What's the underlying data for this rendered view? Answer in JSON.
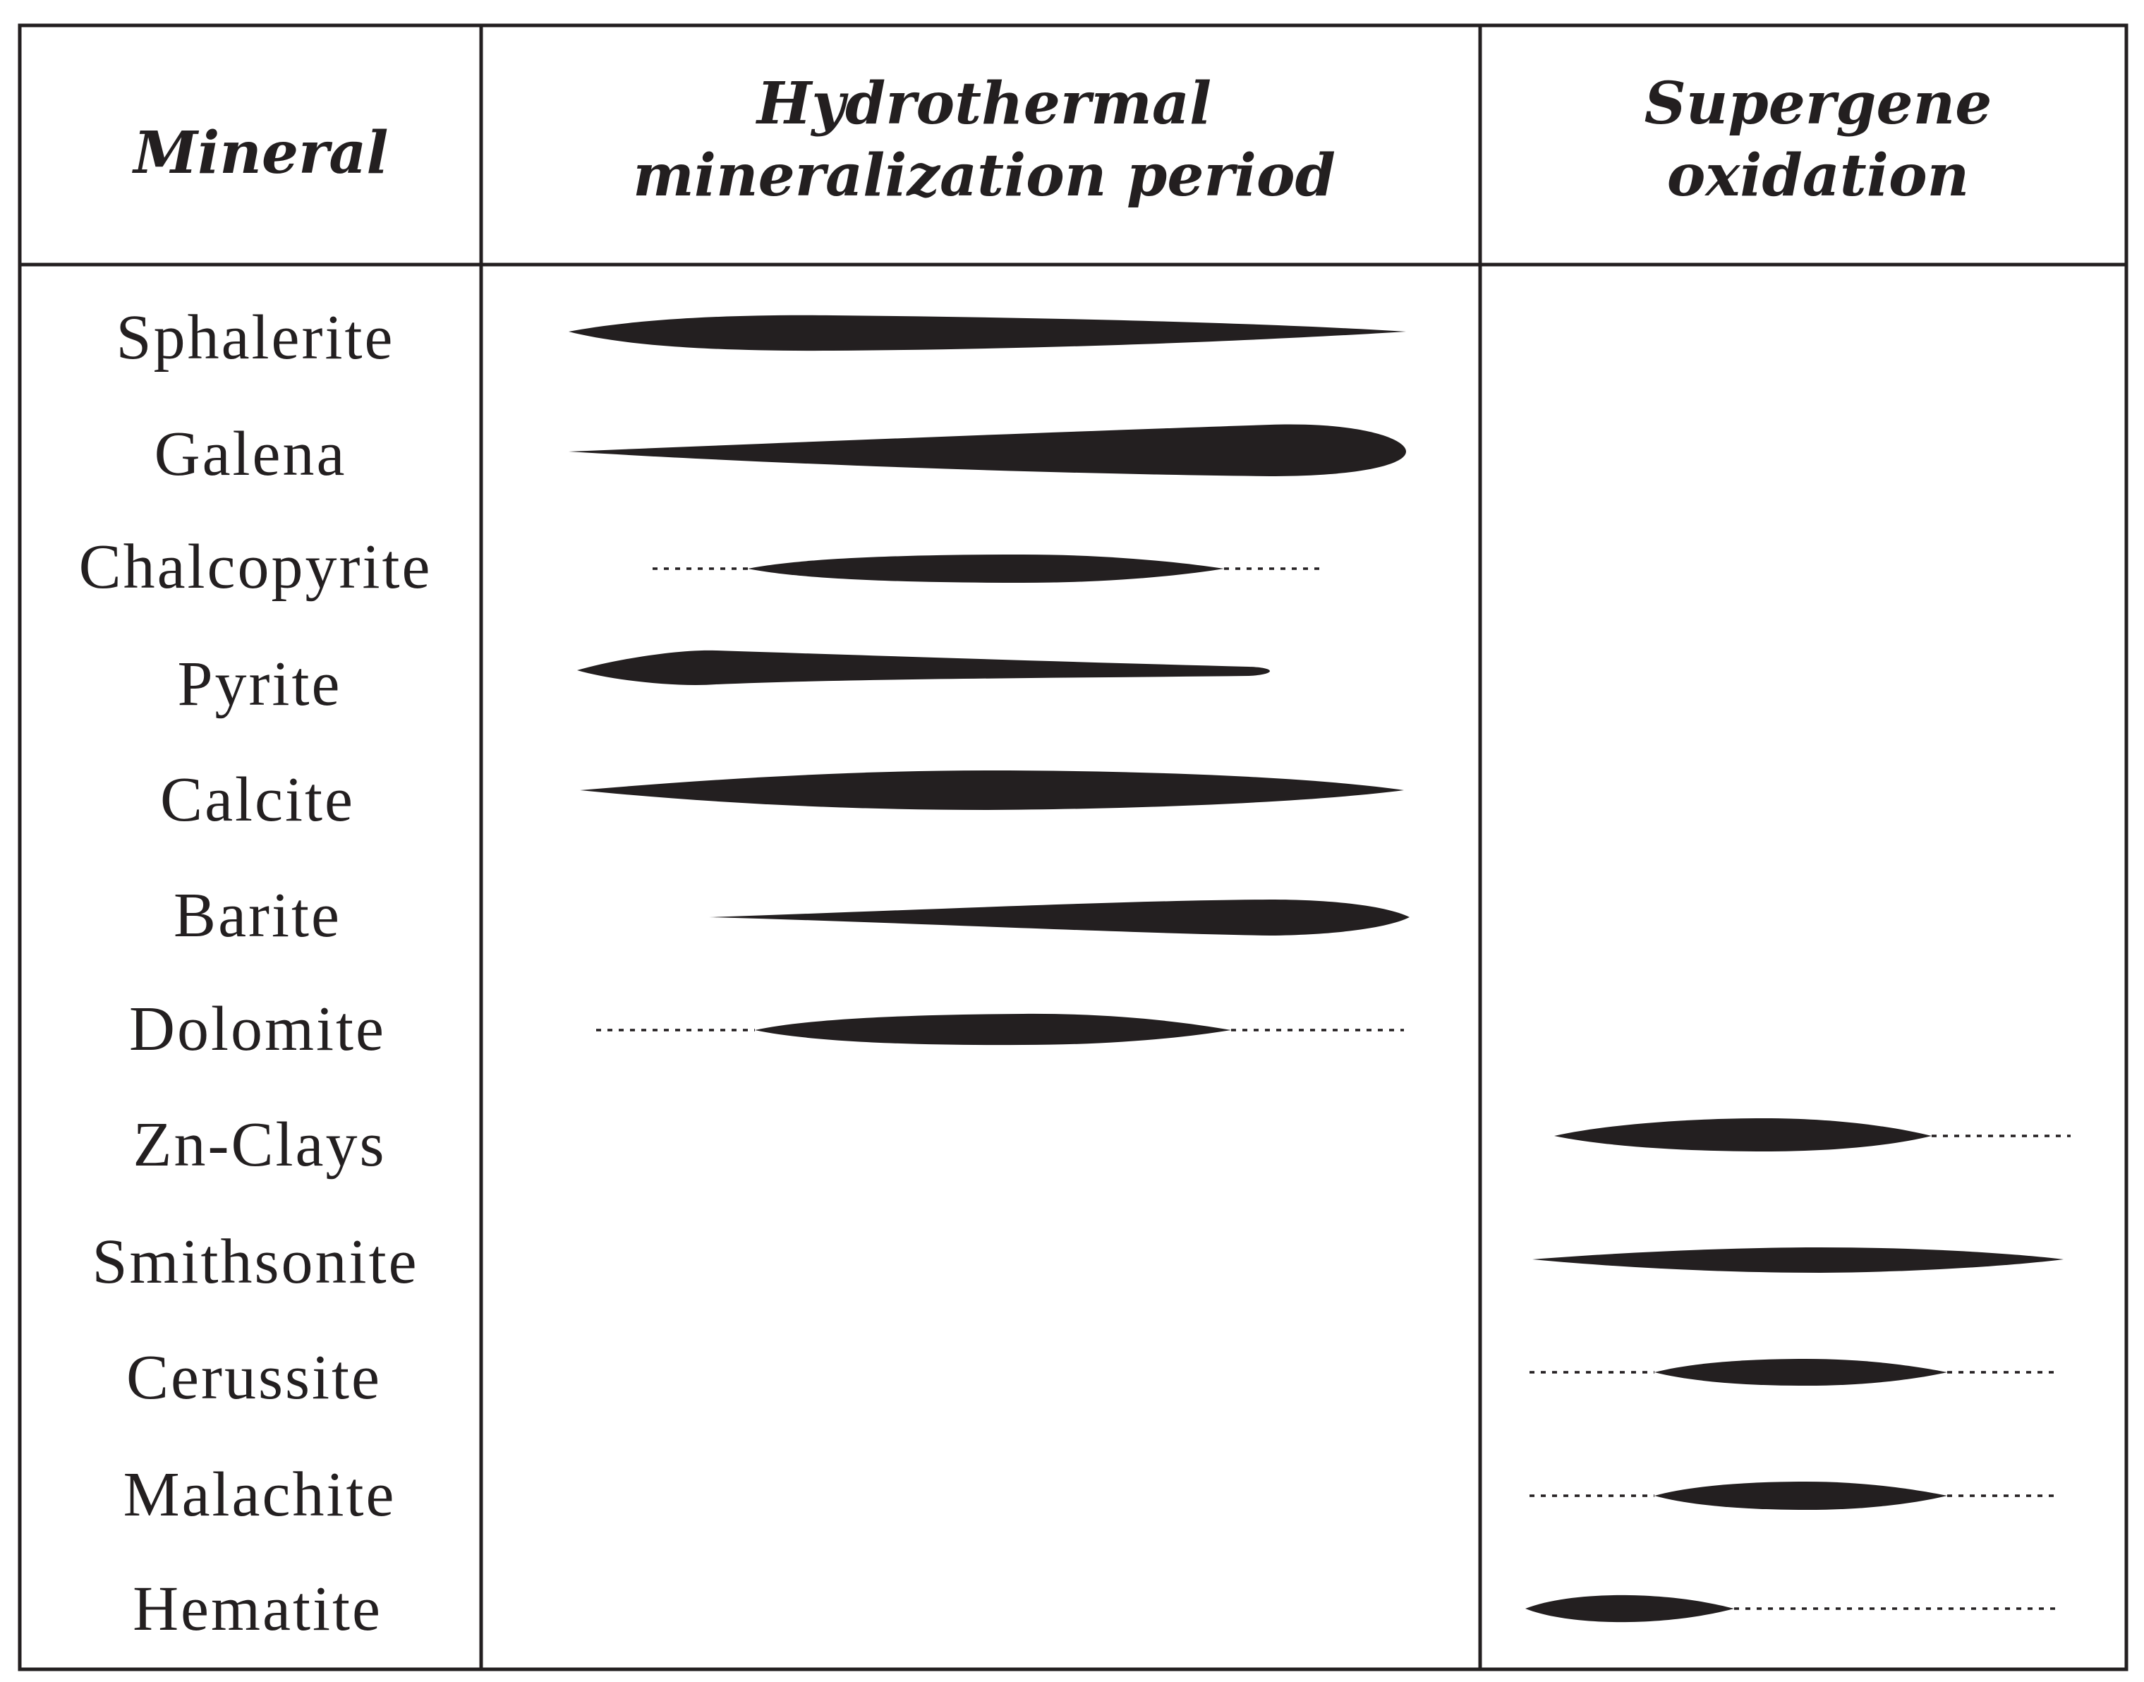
{
  "header": {
    "mineral": "Mineral",
    "hydrothermal_line1": "Hydrothermal",
    "hydrothermal_line2": "mineralization period",
    "supergene_line1": "Supergene",
    "supergene_line2": "oxidation"
  },
  "minerals": [
    {
      "name": "Sphalerite",
      "stage": "hydrothermal"
    },
    {
      "name": "Galena",
      "stage": "hydrothermal"
    },
    {
      "name": "Chalcopyrite",
      "stage": "hydrothermal"
    },
    {
      "name": "Pyrite",
      "stage": "hydrothermal"
    },
    {
      "name": "Calcite",
      "stage": "hydrothermal"
    },
    {
      "name": "Barite",
      "stage": "hydrothermal"
    },
    {
      "name": "Dolomite",
      "stage": "hydrothermal"
    },
    {
      "name": "Zn-Clays",
      "stage": "supergene"
    },
    {
      "name": "Smithsonite",
      "stage": "supergene"
    },
    {
      "name": "Cerussite",
      "stage": "supergene"
    },
    {
      "name": "Malachite",
      "stage": "supergene"
    },
    {
      "name": "Hematite",
      "stage": "supergene"
    }
  ]
}
